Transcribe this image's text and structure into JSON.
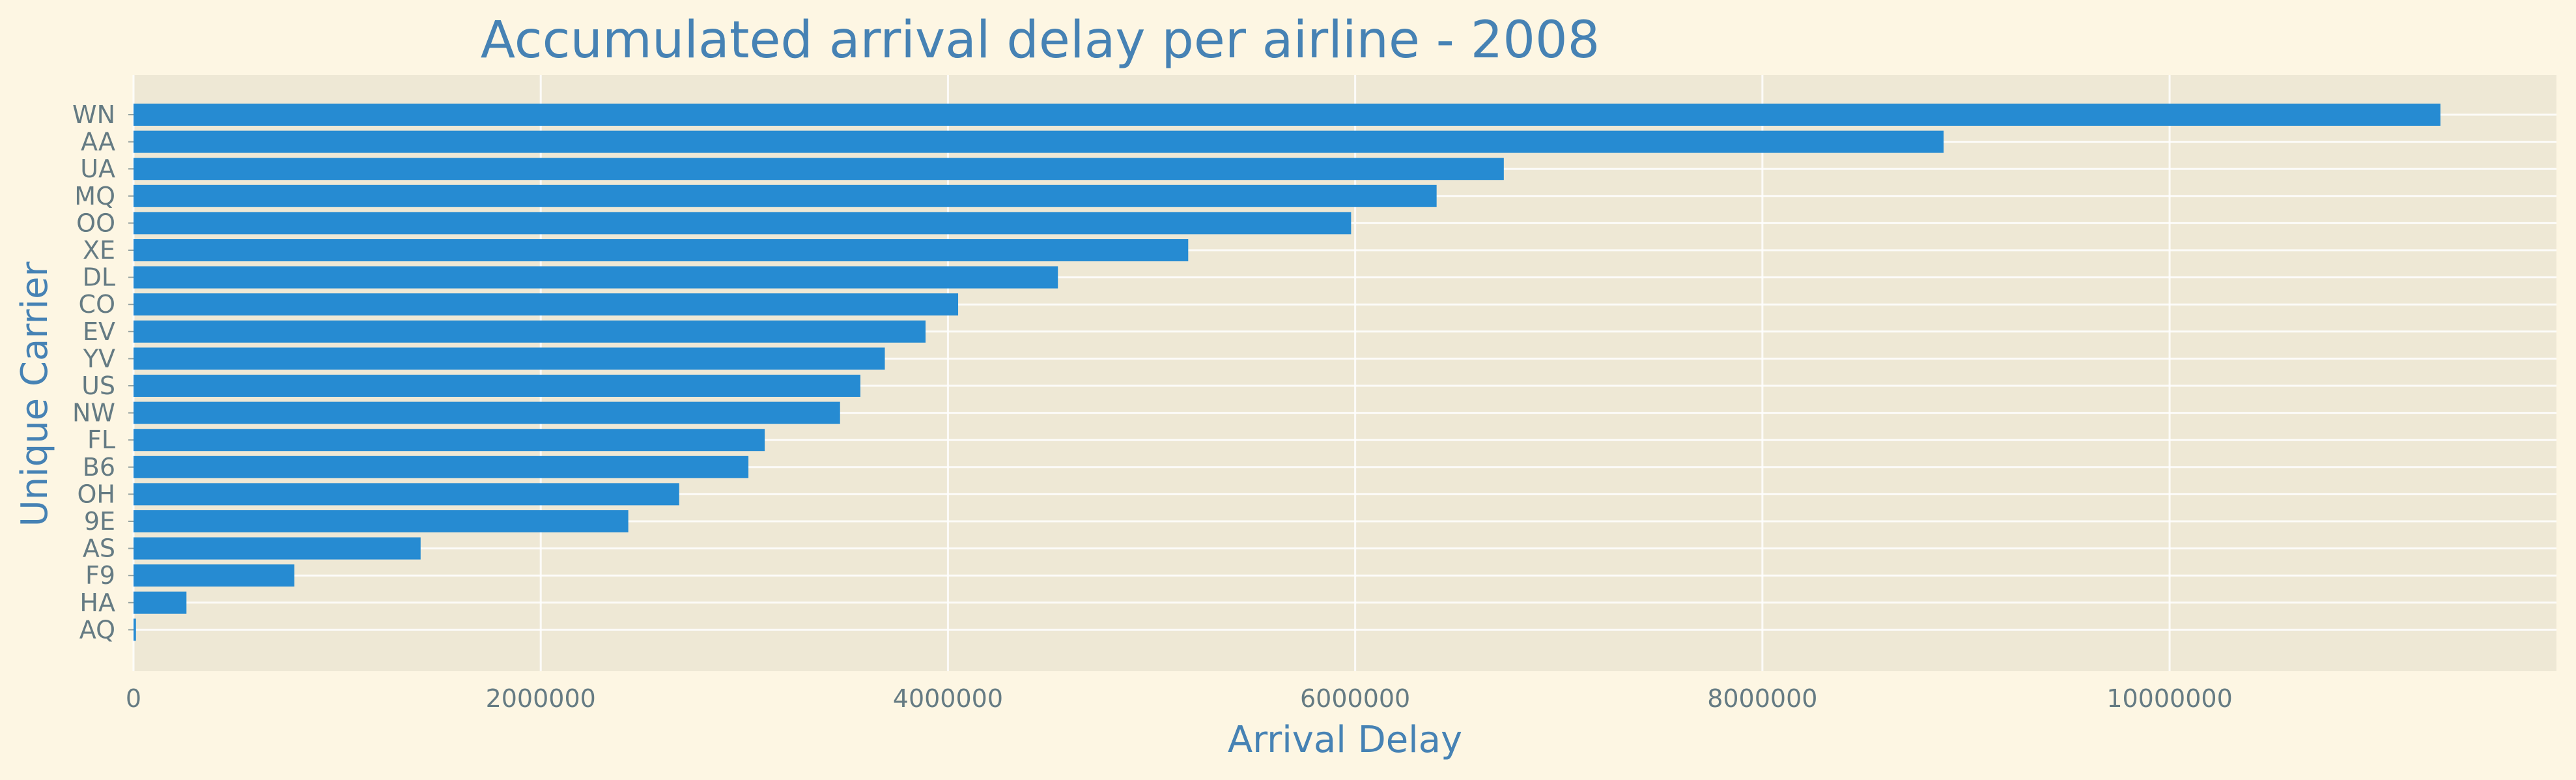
{
  "chart_data": {
    "type": "bar",
    "orientation": "horizontal",
    "title": "Accumulated arrival delay per airline - 2008",
    "xlabel": "Arrival Delay",
    "ylabel": "Unique Carrier",
    "xlim": [
      0,
      11900000
    ],
    "xticks": [
      0,
      2000000,
      4000000,
      6000000,
      8000000,
      10000000
    ],
    "grid": true,
    "categories": [
      "WN",
      "AA",
      "UA",
      "MQ",
      "OO",
      "XE",
      "DL",
      "CO",
      "EV",
      "YV",
      "US",
      "NW",
      "FL",
      "B6",
      "OH",
      "9E",
      "AS",
      "F9",
      "HA",
      "AQ"
    ],
    "values": [
      11330000,
      8890000,
      6730000,
      6400000,
      5980000,
      5180000,
      4540000,
      4050000,
      3890000,
      3690000,
      3570000,
      3470000,
      3100000,
      3020000,
      2680000,
      2430000,
      1410000,
      790000,
      260000,
      12000
    ],
    "colors": {
      "bar": "#268bd2",
      "background": "#fdf6e3",
      "plot_background": "#eee8d5",
      "text": "#4682b4",
      "tick_text": "#657b83"
    }
  }
}
